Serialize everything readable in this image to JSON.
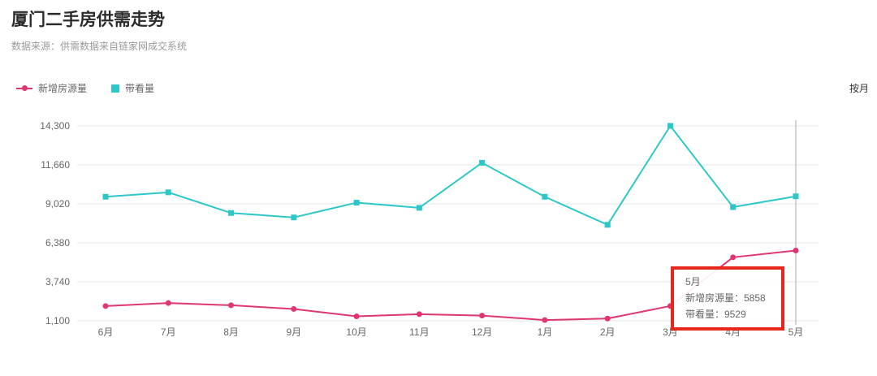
{
  "header": {
    "title": "厦门二手房供需走势",
    "subtitle": "数据来源：供需数据来自链家网成交系统"
  },
  "controls": {
    "period_label": "按月"
  },
  "legend": [
    {
      "label": "新增房源量",
      "color": "#e0366e",
      "marker": "line-dot"
    },
    {
      "label": "带看量",
      "color": "#2ec7c9",
      "marker": "square"
    }
  ],
  "tooltip": {
    "month": "5月",
    "line1": "新增房源量：5858",
    "line2": "带看量：9529",
    "highlight_color": "#e8261b"
  },
  "chart_data": {
    "type": "line",
    "title": "厦门二手房供需走势",
    "xlabel": "",
    "ylabel": "",
    "categories": [
      "6月",
      "7月",
      "8月",
      "9月",
      "10月",
      "11月",
      "12月",
      "1月",
      "2月",
      "3月",
      "4月",
      "5月"
    ],
    "series": [
      {
        "name": "新增房源量",
        "color": "#e0366e",
        "marker": "circle",
        "values": [
          2100,
          2300,
          2150,
          1900,
          1400,
          1550,
          1450,
          1150,
          1250,
          2100,
          5400,
          5858
        ]
      },
      {
        "name": "带看量",
        "color": "#2ec7c9",
        "marker": "square",
        "values": [
          9500,
          9800,
          8400,
          8100,
          9100,
          8750,
          11800,
          9500,
          7600,
          14300,
          8800,
          9529
        ]
      }
    ],
    "ylim": [
      1100,
      14300
    ],
    "yticks": [
      1100,
      3740,
      6380,
      9020,
      11660,
      14300
    ],
    "ytick_labels": [
      "1,100",
      "3,740",
      "6,380",
      "9,020",
      "11,660",
      "14,300"
    ],
    "grid": true,
    "legend_position": "top-left",
    "hover_index": 11
  }
}
